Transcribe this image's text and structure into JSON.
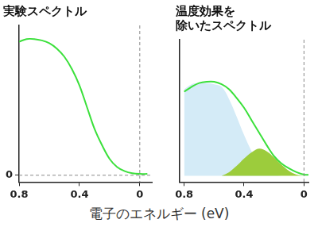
{
  "chart_data": [
    {
      "type": "line",
      "title": "実験スペクトル",
      "x": [
        0.8,
        0.75,
        0.7,
        0.65,
        0.6,
        0.55,
        0.5,
        0.45,
        0.4,
        0.35,
        0.3,
        0.25,
        0.2,
        0.15,
        0.1,
        0.05,
        0,
        -0.05
      ],
      "values": [
        0.98,
        1.0,
        1.0,
        0.99,
        0.97,
        0.93,
        0.87,
        0.78,
        0.66,
        0.5,
        0.34,
        0.22,
        0.12,
        0.06,
        0.03,
        0.015,
        0.01,
        0.01
      ],
      "color": "#3be03b",
      "xlim": [
        0.8,
        -0.08
      ],
      "xticks": [
        0.8,
        0.4,
        0
      ],
      "ylim": [
        -0.05,
        1.1
      ],
      "yticks": [
        0
      ],
      "vline": 0,
      "hline": 0,
      "grid": false
    },
    {
      "type": "line",
      "title": [
        "温度効果を",
        "除いたスペクトル"
      ],
      "x": [
        0.8,
        0.75,
        0.7,
        0.65,
        0.6,
        0.55,
        0.5,
        0.45,
        0.4,
        0.35,
        0.3,
        0.25,
        0.2,
        0.15,
        0.1,
        0.05,
        0,
        -0.05
      ],
      "series": [
        {
          "type": "line",
          "color": "#3be03b",
          "values": [
            0.68,
            0.72,
            0.75,
            0.76,
            0.76,
            0.74,
            0.7,
            0.63,
            0.55,
            0.45,
            0.35,
            0.25,
            0.16,
            0.1,
            0.06,
            0.03,
            0.01,
            0.01
          ]
        },
        {
          "type": "area",
          "color": "#9ccc3c",
          "values": [
            null,
            null,
            null,
            null,
            null,
            0,
            0.03,
            0.08,
            0.14,
            0.19,
            0.22,
            0.2,
            0.15,
            0.09,
            0.04,
            0.01,
            0,
            null
          ]
        },
        {
          "type": "area",
          "color": "#d4ebf7",
          "values": [
            0.7,
            0.74,
            0.75,
            0.75,
            0.74,
            0.72,
            0.62,
            0.48,
            0.33,
            0.2,
            0.1,
            0.04,
            0.01,
            0,
            null,
            null,
            null,
            null
          ]
        }
      ],
      "xlim": [
        0.83,
        -0.03
      ],
      "xticks": [
        0.8,
        0.4,
        0
      ],
      "ylim": [
        -0.05,
        1.1
      ],
      "yticks": [],
      "vline": 0,
      "tick_labels": "x",
      "grid": false
    }
  ],
  "x_label": "電子のエネルギー (eV)"
}
